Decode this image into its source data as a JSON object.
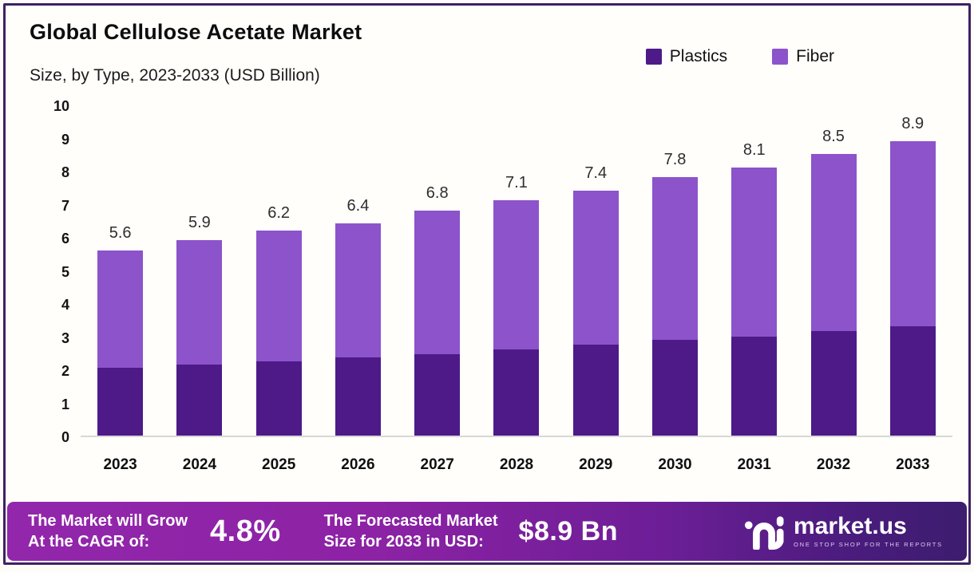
{
  "header": {
    "title": "Global Cellulose Acetate Market",
    "subtitle": "Size, by Type, 2023-2033 (USD Billion)"
  },
  "legend": [
    {
      "label": "Plastics",
      "color": "#4d1a88"
    },
    {
      "label": "Fiber",
      "color": "#8c53cb"
    }
  ],
  "chart_data": {
    "type": "bar",
    "stacked": true,
    "title": "Global Cellulose Acetate Market Size, by Type, 2023-2033 (USD Billion)",
    "categories": [
      "2023",
      "2024",
      "2025",
      "2026",
      "2027",
      "2028",
      "2029",
      "2030",
      "2031",
      "2032",
      "2033"
    ],
    "series": [
      {
        "name": "Plastics",
        "color": "#4d1a88",
        "values": [
          2.05,
          2.15,
          2.25,
          2.35,
          2.45,
          2.6,
          2.75,
          2.9,
          3.0,
          3.15,
          3.3
        ]
      },
      {
        "name": "Fiber",
        "color": "#8c53cb",
        "values": [
          3.55,
          3.75,
          3.95,
          4.05,
          4.35,
          4.5,
          4.65,
          4.9,
          5.1,
          5.35,
          5.6
        ]
      }
    ],
    "totals": [
      5.6,
      5.9,
      6.2,
      6.4,
      6.8,
      7.1,
      7.4,
      7.8,
      8.1,
      8.5,
      8.9
    ],
    "total_labels": [
      "5.6",
      "5.9",
      "6.2",
      "6.4",
      "6.8",
      "7.1",
      "7.4",
      "7.8",
      "8.1",
      "8.5",
      "8.9"
    ],
    "xlabel": "",
    "ylabel": "",
    "ylim": [
      0,
      10
    ],
    "yticks": [
      0,
      1,
      2,
      3,
      4,
      5,
      6,
      7,
      8,
      9,
      10
    ],
    "grid": false,
    "legend_position": "top-right"
  },
  "footer": {
    "cagr_line1": "The Market will Grow",
    "cagr_line2": "At the CAGR of:",
    "cagr_value": "4.8%",
    "forecast_line1": "The Forecasted Market",
    "forecast_line2": "Size for 2033 in USD:",
    "forecast_value": "$8.9 Bn",
    "brand_name": "market.us",
    "brand_tagline": "ONE STOP SHOP FOR THE REPORTS"
  },
  "colors": {
    "frame_border": "#3e2263",
    "background": "#fffefb",
    "baseline": "#d8d8d6",
    "footer_gradient_left": "#9227ab",
    "footer_gradient_right": "#3c1d6e",
    "plastics": "#4d1a88",
    "fiber": "#8c53cb"
  }
}
